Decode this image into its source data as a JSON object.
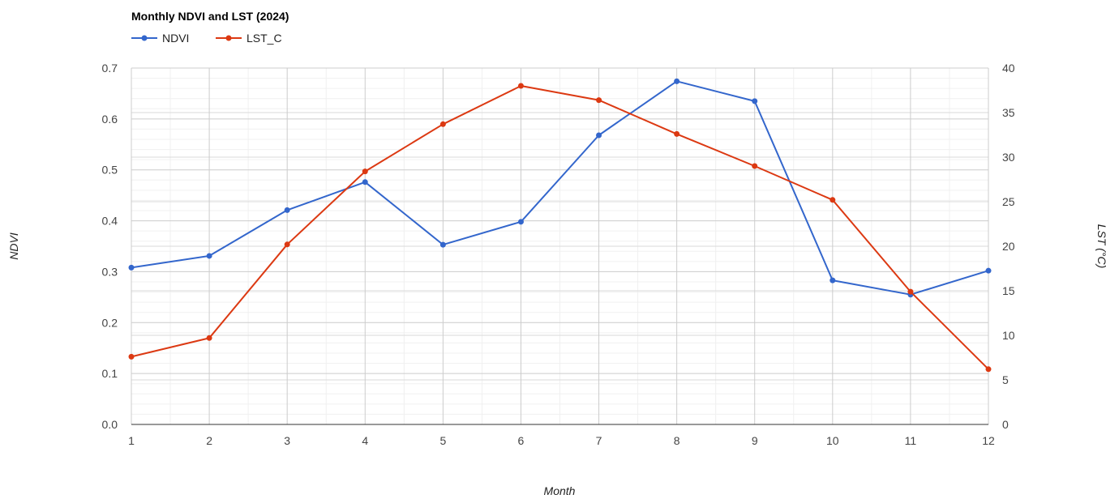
{
  "chart_data": {
    "type": "line",
    "title": "Monthly NDVI and LST (2024)",
    "xlabel": "Month",
    "ylabel_left": "NDVI",
    "ylabel_right": "LST (°C)",
    "x": [
      1,
      2,
      3,
      4,
      5,
      6,
      7,
      8,
      9,
      10,
      11,
      12
    ],
    "x_tick_labels": [
      "1",
      "2",
      "3",
      "4",
      "5",
      "6",
      "7",
      "8",
      "9",
      "10",
      "11",
      "12"
    ],
    "ylim_left": [
      0,
      0.7
    ],
    "ylim_right": [
      0,
      40
    ],
    "left_ticks": [
      "0.0",
      "0.1",
      "0.2",
      "0.3",
      "0.4",
      "0.5",
      "0.6",
      "0.7"
    ],
    "right_ticks": [
      "0",
      "5",
      "10",
      "15",
      "20",
      "25",
      "30",
      "35",
      "40"
    ],
    "grid": true,
    "legend_position": "top-left",
    "series": [
      {
        "name": "NDVI",
        "axis": "left",
        "color": "#3366cc",
        "values": [
          0.308,
          0.331,
          0.421,
          0.476,
          0.353,
          0.398,
          0.568,
          0.674,
          0.635,
          0.283,
          0.255,
          0.302
        ]
      },
      {
        "name": "LST_C",
        "axis": "right",
        "color": "#dc3912",
        "values": [
          7.6,
          9.7,
          20.2,
          28.4,
          33.7,
          38.0,
          36.4,
          32.6,
          29.0,
          25.2,
          14.9,
          6.2
        ]
      }
    ]
  }
}
